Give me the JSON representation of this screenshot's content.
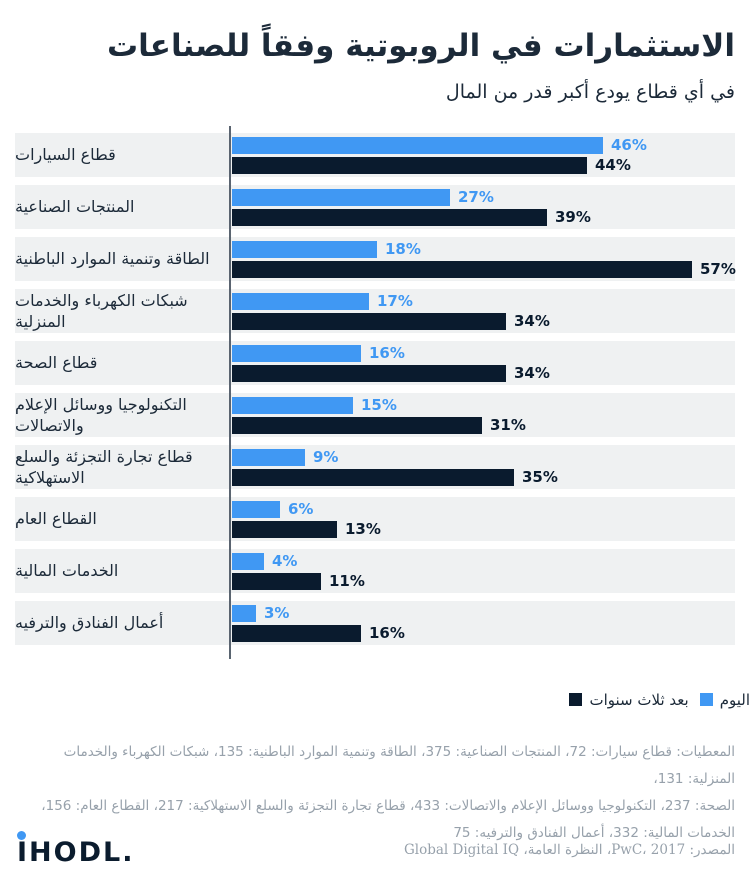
{
  "title": "الاستثمارات في الروبوتية وفقاً للصناعات",
  "subtitle": "في أي قطاع يودع أكبر قدر من المال",
  "chart_data": {
    "type": "bar",
    "orientation": "horizontal",
    "categories": [
      "قطاع السيارات",
      "المنتجات الصناعية",
      "الطاقة وتنمية الموارد الباطنية",
      "شبكات الكهرباء والخدمات المنزلية",
      "قطاع الصحة",
      "التكنولوجيا ووسائل الإعلام والاتصالات",
      "قطاع تجارة التجزئة والسلع الاستهلاكية",
      "القطاع العام",
      "الخدمات المالية",
      "أعمال الفنادق والترفيه"
    ],
    "series": [
      {
        "name": "اليوم",
        "color": "#4098f3",
        "values": [
          46,
          27,
          18,
          17,
          16,
          15,
          9,
          6,
          4,
          3
        ]
      },
      {
        "name": "بعد ثلاث سنوات",
        "color": "#0a1b2e",
        "values": [
          44,
          39,
          57,
          34,
          34,
          31,
          35,
          13,
          11,
          16
        ]
      }
    ],
    "value_suffix": "%",
    "xlim": [
      0,
      57
    ],
    "grid": false,
    "legend_position": "bottom-right",
    "row_background": "#eff1f2",
    "axis_line_color": "#5a6470"
  },
  "legend": {
    "items": [
      {
        "label": "اليوم",
        "color": "#4098f3"
      },
      {
        "label": "بعد ثلاث سنوات",
        "color": "#0a1b2e"
      }
    ]
  },
  "footer": {
    "data_note_lines": [
      "المعطيات: قطاع سيارات: 72، المنتجات الصناعية: 375، الطاقة وتنمية الموارد الباطنية: 135، شبكات الكهرباء والخدمات المنزلية: 131،",
      "الصحة: 237، التكنولوجيا ووسائل الإعلام والاتصالات: 433، قطاع تجارة التجزئة والسلع الاستهلاكية: 217، القطاع العام: 156،",
      "الخدمات المالية: 332، أعمال الفنادق والترفيه: 75"
    ],
    "source": "المصدر: PwC، 2017، النظرة العامة، Global Digital IQ",
    "logo_text": "IHODL."
  },
  "colors": {
    "accent_blue": "#4098f3",
    "dark_navy": "#0a1b2e",
    "text_dark": "#1c2a39",
    "text_gray": "#97a1ab",
    "row_bg": "#eff1f2"
  }
}
